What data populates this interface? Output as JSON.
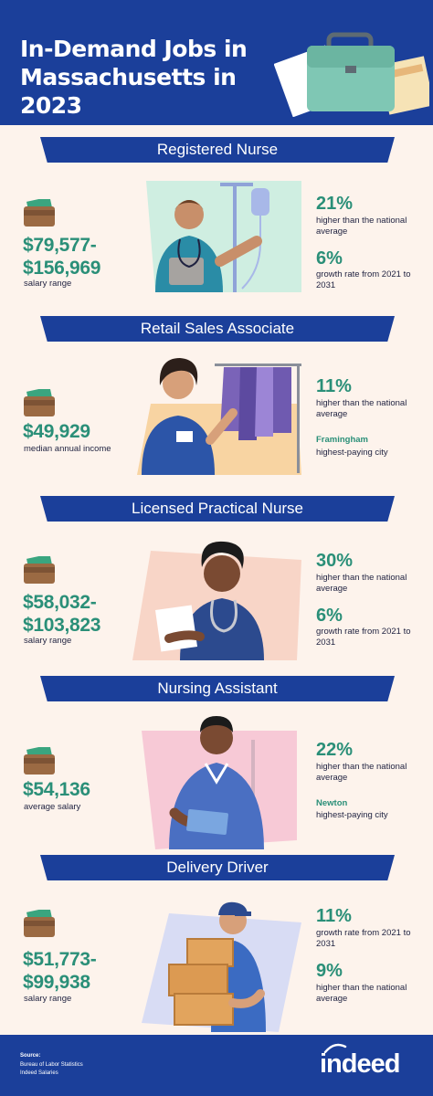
{
  "header": {
    "title": "In-Demand Jobs in Massachusetts in 2023"
  },
  "jobs": [
    {
      "title": "Registered Nurse",
      "salary_line1": "$79,577-",
      "salary_line2": "$156,969",
      "salary_label": "salary range",
      "stat1_value": "21%",
      "stat1_label": "higher than the national average",
      "stat2_value": "6%",
      "stat2_label": "growth rate from 2021 to 2031"
    },
    {
      "title": "Retail Sales Associate",
      "salary_line1": "$49,929",
      "salary_label": "median annual income",
      "stat1_value": "11%",
      "stat1_label": "higher than the national average",
      "city": "Framingham",
      "city_label": "highest-paying city"
    },
    {
      "title": "Licensed Practical Nurse",
      "salary_line1": "$58,032-",
      "salary_line2": "$103,823",
      "salary_label": "salary range",
      "stat1_value": "30%",
      "stat1_label": "higher than the national average",
      "stat2_value": "6%",
      "stat2_label": "growth rate from 2021 to 2031"
    },
    {
      "title": "Nursing Assistant",
      "salary_line1": "$54,136",
      "salary_label": "average salary",
      "stat1_value": "22%",
      "stat1_label": "higher than the national average",
      "city": "Newton",
      "city_label": "highest-paying city"
    },
    {
      "title": "Delivery Driver",
      "salary_line1": "$51,773-",
      "salary_line2": "$99,938",
      "salary_label": "salary range",
      "stat1_value": "11%",
      "stat1_label": "growth rate from 2021 to 2031",
      "stat2_value": "9%",
      "stat2_label": "higher than the national average"
    }
  ],
  "footer": {
    "source_heading": "Source:",
    "source_1": "Bureau of Labor Statistics",
    "source_2": "Indeed Salaries",
    "logo": "indeed"
  },
  "colors": {
    "brand_blue": "#1b3f9a",
    "accent_green": "#2a8f78",
    "background": "#fdf3ec"
  },
  "icons": [
    "briefcase-icon",
    "wallet-money-icon",
    "indeed-logo"
  ]
}
